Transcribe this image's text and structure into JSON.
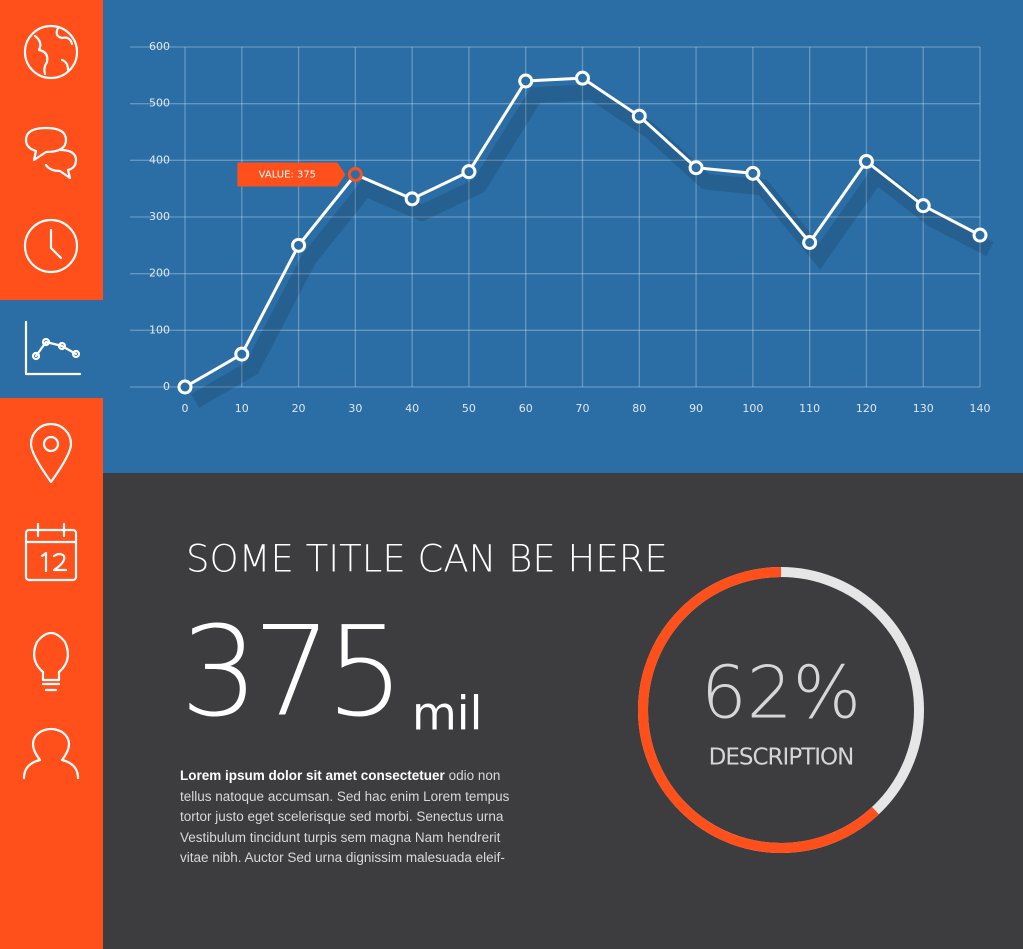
{
  "chart_data": [
    {
      "type": "line",
      "x": [
        0,
        10,
        20,
        30,
        40,
        50,
        60,
        70,
        80,
        90,
        100,
        110,
        120,
        130,
        140
      ],
      "series": [
        {
          "color": "#ffffff",
          "values": [
            0,
            58,
            250,
            375,
            332,
            380,
            540,
            545,
            478,
            387,
            377,
            255,
            398,
            320,
            268
          ]
        }
      ],
      "xlim": [
        0,
        140
      ],
      "xticks": [
        0,
        10,
        20,
        30,
        40,
        50,
        60,
        70,
        80,
        90,
        100,
        110,
        120,
        130,
        140
      ],
      "ylim": [
        0,
        600
      ],
      "yticks": [
        0,
        100,
        200,
        300,
        400,
        500,
        600
      ],
      "grid": true,
      "annotation": "VALUE: 375"
    },
    {
      "type": "donut",
      "values": [
        62
      ],
      "value_labels": [
        "62%"
      ],
      "color": "#ff4f1a",
      "label": "DESCRIPTION"
    }
  ],
  "panel": {
    "title": "SOME TITLE CAN BE HERE",
    "value": "375",
    "unit": "mil",
    "lead": "Lorem ipsum dolor sit amet consectetuer",
    "body": "odio non tellus natoque accumsan. Sed hac enim Lorem tempus tortor justo eget scelerisque sed morbi. Senectus urna Vestibulum tincidunt turpis sem magna Nam hendrerit vitae nibh. Auctor Sed urna dignissim malesuada eleif-"
  }
}
